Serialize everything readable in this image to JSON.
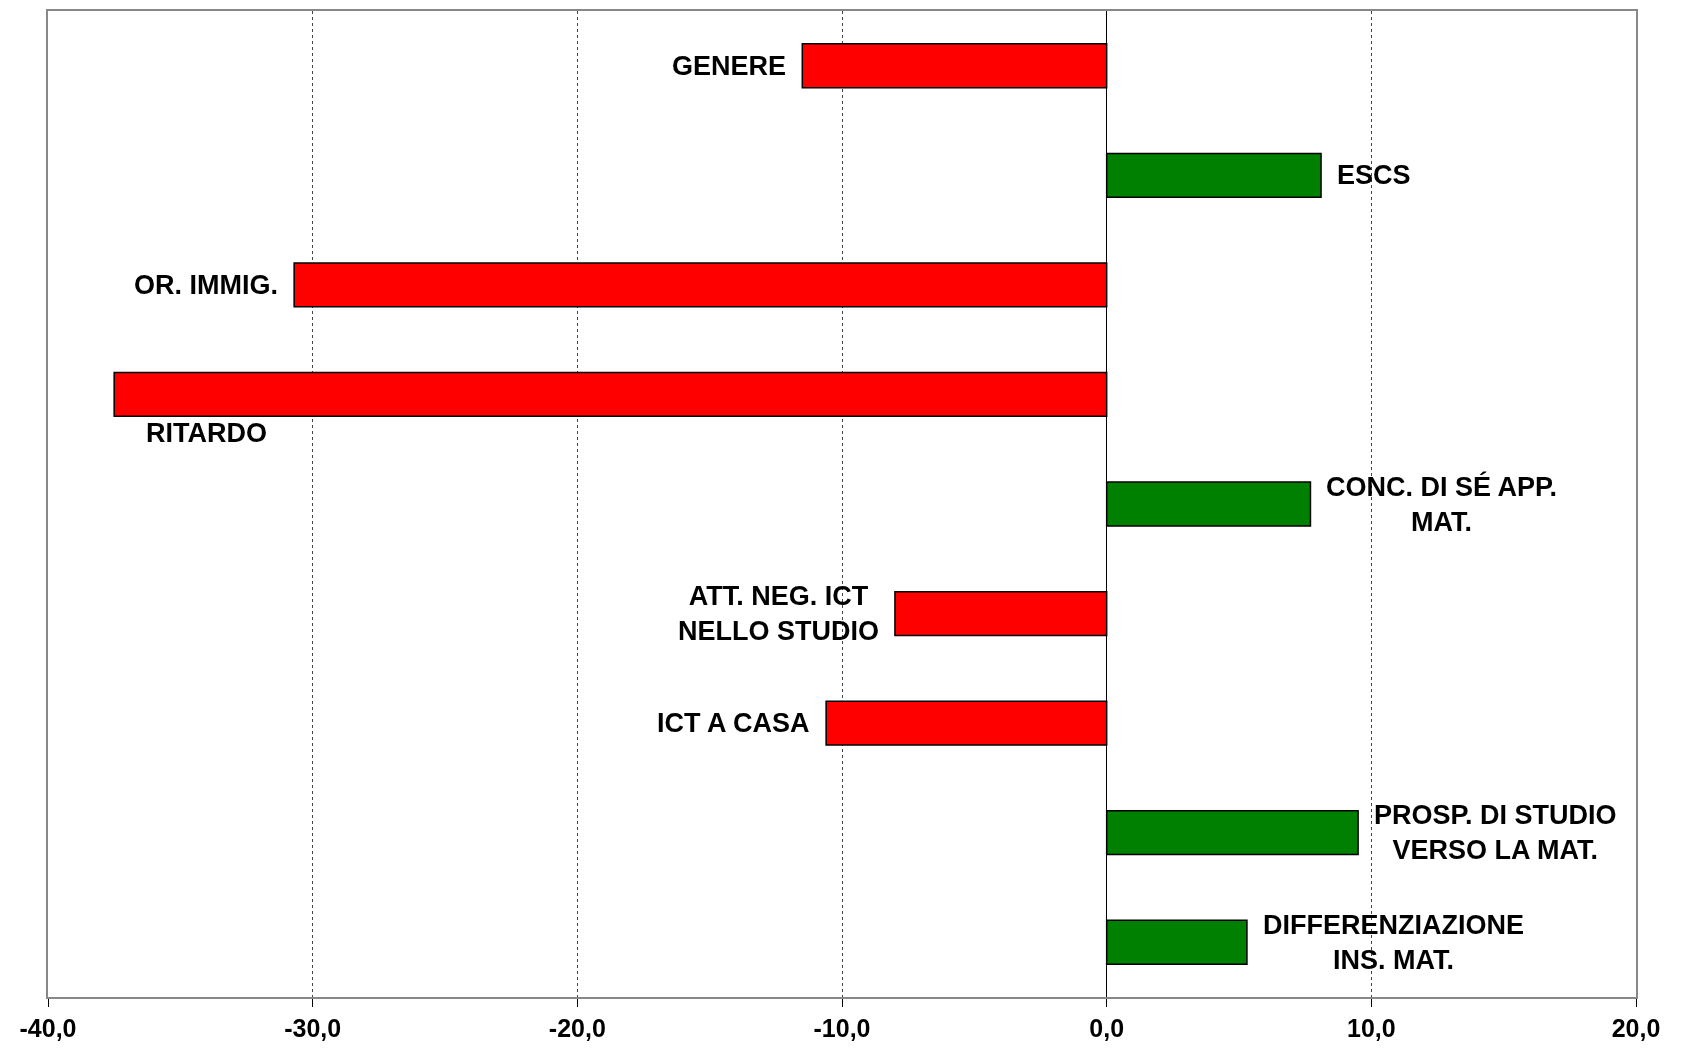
{
  "chart_data": {
    "type": "bar",
    "orientation": "horizontal",
    "categories": [
      "GENERE",
      "ESCS",
      "OR. IMMIG.",
      "RITARDO",
      "CONC. DI SÉ APP.\nMAT.",
      "ATT. NEG. ICT\nNELLO STUDIO",
      "ICT A CASA",
      "PROSP. DI STUDIO\nVERSO LA MAT.",
      "DIFFERENZIAZIONE\nINS. MAT."
    ],
    "values": [
      -11.5,
      8.1,
      -30.7,
      -37.5,
      7.7,
      -8.0,
      -10.6,
      9.5,
      5.3
    ],
    "colors": [
      "#ff0000",
      "#008000",
      "#ff0000",
      "#ff0000",
      "#008000",
      "#ff0000",
      "#ff0000",
      "#008000",
      "#008000"
    ],
    "xlim": [
      -40,
      20
    ],
    "xticks": [
      {
        "value": -40,
        "label": "-40,0"
      },
      {
        "value": -30,
        "label": "-30,0"
      },
      {
        "value": -20,
        "label": "-20,0"
      },
      {
        "value": -10,
        "label": "-10,0"
      },
      {
        "value": 0,
        "label": "0,0"
      },
      {
        "value": 10,
        "label": "10,0"
      },
      {
        "value": 20,
        "label": "20,0"
      }
    ],
    "grid": "x",
    "legend": false,
    "tick_labels": "x"
  }
}
